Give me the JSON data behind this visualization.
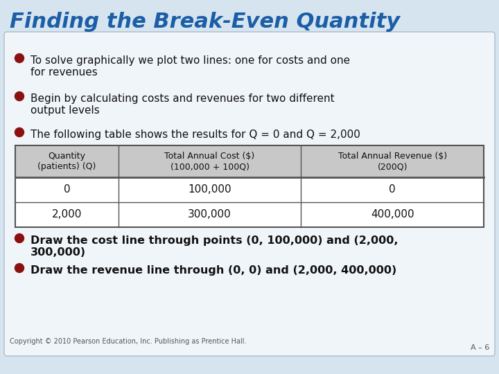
{
  "title": "Finding the Break-Even Quantity",
  "title_color": "#1B5EA6",
  "title_fontsize": 22,
  "background_color": "#D6E4F0",
  "card_color": "#F0F5FA",
  "card_border_color": "#AABBCC",
  "bullet_color": "#8B1010",
  "bullet_points": [
    "To solve graphically we plot two lines: one for costs and one\nfor revenues",
    "Begin by calculating costs and revenues for two different\noutput levels",
    "The following table shows the results for Q = 0 and Q = 2,000"
  ],
  "bullet_points_bottom": [
    "Draw the cost line through points (0, 100,000) and (2,000,\n300,000)",
    "Draw the revenue line through (0, 0) and (2,000, 400,000)"
  ],
  "table_header": [
    "Quantity\n(patients) (Q)",
    "Total Annual Cost ($)\n(100,000 + 100Q)",
    "Total Annual Revenue ($)\n(200Q)"
  ],
  "table_rows": [
    [
      "0",
      "100,000",
      "0"
    ],
    [
      "2,000",
      "300,000",
      "400,000"
    ]
  ],
  "table_header_bg": "#C8C8C8",
  "table_row_bg": "#FFFFFF",
  "table_border_color": "#555555",
  "copyright": "Copyright © 2010 Pearson Education, Inc. Publishing as Prentice Hall.",
  "slide_number": "A – 6",
  "text_color": "#111111"
}
